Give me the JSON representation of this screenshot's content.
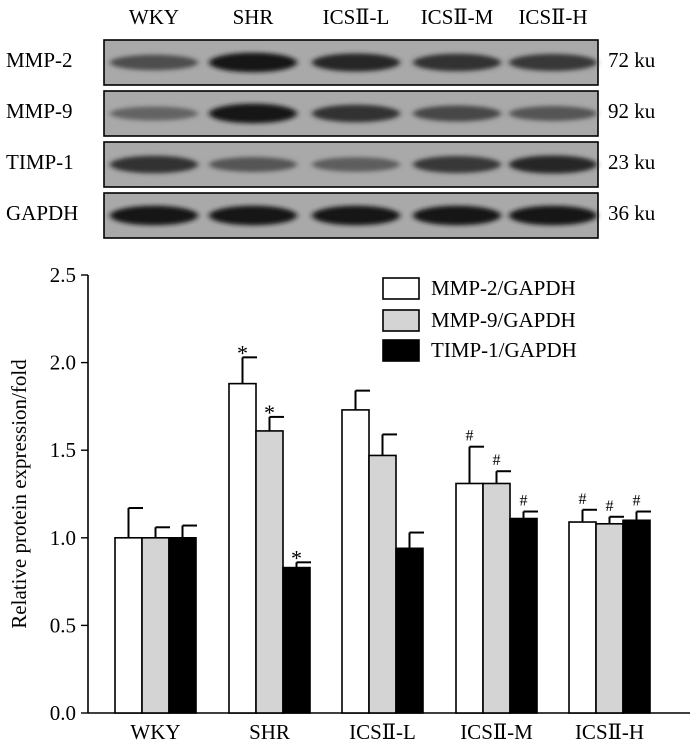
{
  "blot": {
    "lanes": [
      "WKY",
      "SHR",
      "ICSⅡ-L",
      "ICSⅡ-M",
      "ICSⅡ-H"
    ],
    "rows": [
      {
        "label": "MMP-2",
        "size": "72 ku",
        "intensity": [
          0.55,
          0.95,
          0.8,
          0.75,
          0.7
        ]
      },
      {
        "label": "MMP-9",
        "size": "92 ku",
        "intensity": [
          0.4,
          0.95,
          0.75,
          0.6,
          0.5
        ]
      },
      {
        "label": "TIMP-1",
        "size": "23 ku",
        "intensity": [
          0.75,
          0.5,
          0.45,
          0.7,
          0.8
        ]
      },
      {
        "label": "GAPDH",
        "size": "36 ku",
        "intensity": [
          0.95,
          0.95,
          0.95,
          0.95,
          0.95
        ]
      }
    ]
  },
  "chart_data": {
    "type": "bar",
    "categories": [
      "WKY",
      "SHR",
      "ICSⅡ-L",
      "ICSⅡ-M",
      "ICSⅡ-H"
    ],
    "ylabel": "Relative protein expression/fold",
    "ylim": [
      0,
      2.5
    ],
    "yticks": [
      "0.0",
      "0.5",
      "1.0",
      "1.5",
      "2.0",
      "2.5"
    ],
    "series": [
      {
        "name": "MMP-2/GAPDH",
        "color": "#ffffff",
        "values": [
          1.0,
          1.88,
          1.73,
          1.31,
          1.09
        ],
        "errors": [
          0.17,
          0.15,
          0.11,
          0.21,
          0.07
        ],
        "marks": [
          "",
          "*",
          "",
          "#",
          "#"
        ]
      },
      {
        "name": "MMP-9/GAPDH",
        "color": "#d4d4d4",
        "values": [
          1.0,
          1.61,
          1.47,
          1.31,
          1.08
        ],
        "errors": [
          0.06,
          0.08,
          0.12,
          0.07,
          0.04
        ],
        "marks": [
          "",
          "*",
          "",
          "#",
          "#"
        ]
      },
      {
        "name": "TIMP-1/GAPDH",
        "color": "#000000",
        "values": [
          1.0,
          0.83,
          0.94,
          1.11,
          1.1
        ],
        "errors": [
          0.07,
          0.03,
          0.09,
          0.04,
          0.05
        ],
        "marks": [
          "",
          "*",
          "",
          "#",
          "#"
        ]
      }
    ],
    "legend_position": "top-right",
    "grid": false
  }
}
